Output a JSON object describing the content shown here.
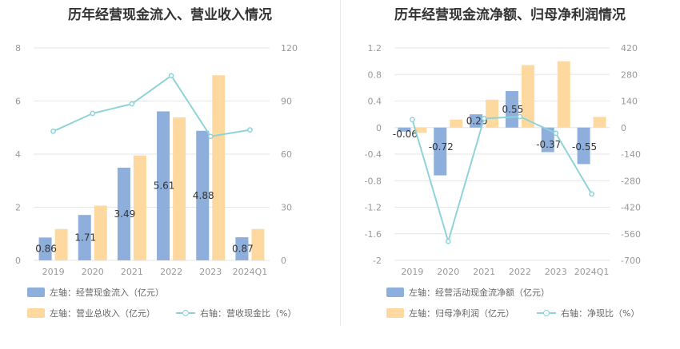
{
  "colors": {
    "blue": "#8eaedc",
    "orange": "#fdd9a0",
    "teal": "#8fd3da",
    "grid": "#e6e6e6",
    "axis_text": "#999999",
    "label_text": "#333333"
  },
  "left": {
    "title": "历年经营现金流入、营业收入情况",
    "legend": {
      "bar1": "左轴：经营现金流入（亿元）",
      "bar2": "左轴：营业总收入（亿元）",
      "line": "右轴：营收现金比（%）"
    }
  },
  "right": {
    "title": "历年经营现金流净额、归母净利润情况",
    "legend": {
      "bar1": "左轴：经营活动现金流净额（亿元）",
      "bar2": "左轴：归母净利润（亿元）",
      "line": "右轴：净现比（%）"
    }
  },
  "chart_data": [
    {
      "type": "bar",
      "categories": [
        "2019",
        "2020",
        "2021",
        "2022",
        "2023",
        "2024Q1"
      ],
      "series": [
        {
          "name": "左轴：经营现金流入（亿元）",
          "axis": "left",
          "kind": "bar",
          "values": [
            0.86,
            1.71,
            3.49,
            5.61,
            4.88,
            0.87
          ],
          "data_labels": [
            "0.86",
            "1.71",
            "3.49",
            "5.61",
            "4.88",
            "0.87"
          ]
        },
        {
          "name": "左轴：营业总收入（亿元）",
          "axis": "left",
          "kind": "bar",
          "values": [
            1.18,
            2.06,
            3.95,
            5.38,
            6.97,
            1.18
          ]
        },
        {
          "name": "右轴：营收现金比（%）",
          "axis": "right",
          "kind": "line",
          "values": [
            72.9,
            83.0,
            88.4,
            104.3,
            70.0,
            73.7
          ]
        }
      ],
      "ylim_left": [
        0,
        8
      ],
      "yticks_left": [
        0,
        2,
        4,
        6,
        8
      ],
      "ylim_right": [
        0,
        120
      ],
      "yticks_right": [
        0,
        30,
        60,
        90,
        120
      ],
      "grid": true,
      "legend_position": "bottom"
    },
    {
      "type": "bar",
      "categories": [
        "2019",
        "2020",
        "2021",
        "2022",
        "2023",
        "2024Q1"
      ],
      "series": [
        {
          "name": "左轴：经营活动现金流净额（亿元）",
          "axis": "left",
          "kind": "bar",
          "values": [
            -0.06,
            -0.72,
            0.2,
            0.55,
            -0.37,
            -0.55
          ],
          "data_labels": [
            "-0.06",
            "-0.72",
            "0.20",
            "0.55",
            "-0.37",
            "-0.55"
          ]
        },
        {
          "name": "左轴：归母净利润（亿元）",
          "axis": "left",
          "kind": "bar",
          "values": [
            -0.08,
            0.12,
            0.42,
            0.94,
            1.0,
            0.16
          ]
        },
        {
          "name": "右轴：净现比（%）",
          "axis": "right",
          "kind": "line",
          "values": [
            42,
            -600,
            48,
            58,
            -30,
            -350
          ]
        }
      ],
      "ylim_left": [
        -2,
        1.2
      ],
      "yticks_left": [
        -2,
        -1.6,
        -1.2,
        -0.8,
        -0.4,
        0,
        0.4,
        0.8,
        1.2
      ],
      "yticklabels_left": [
        "-2",
        "-1.6",
        "-1.2",
        "-0.8",
        "-0.4",
        "0",
        "0.4",
        "0.8",
        "1.2"
      ],
      "ylim_right": [
        -700,
        420
      ],
      "yticks_right": [
        -700,
        -560,
        -420,
        -280,
        -140,
        0,
        140,
        280,
        420
      ],
      "grid": true,
      "legend_position": "bottom"
    }
  ]
}
